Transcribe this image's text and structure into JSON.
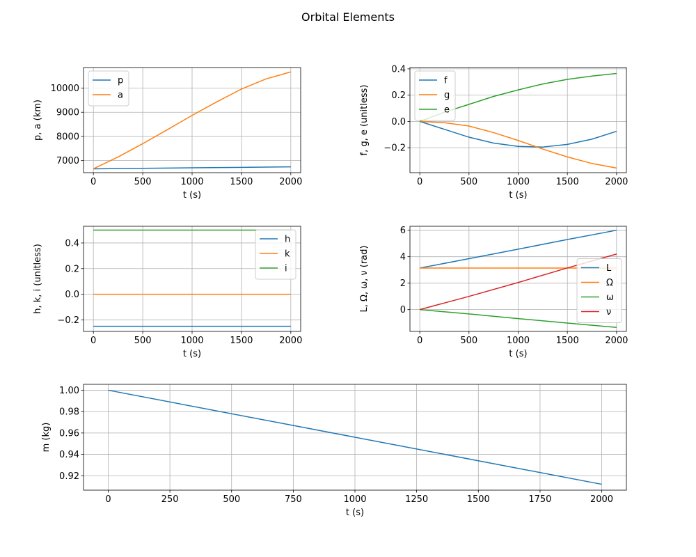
{
  "figure": {
    "title": "Orbital Elements"
  },
  "colors": {
    "blue": "#1f77b4",
    "orange": "#ff7f0e",
    "green": "#2ca02c",
    "red": "#d62728",
    "grid": "#b0b0b0"
  },
  "chart_data": [
    {
      "type": "line",
      "xlabel": "t (s)",
      "ylabel": "p, a (km)",
      "xlim": [
        -100,
        2100
      ],
      "ylim": [
        6500,
        10850
      ],
      "xticks": [
        0,
        500,
        1000,
        1500,
        2000
      ],
      "yticks": [
        7000,
        8000,
        9000,
        10000
      ],
      "grid": true,
      "legend_position": "upper-left",
      "series": [
        {
          "name": "p",
          "color": "#1f77b4",
          "x": [
            0,
            500,
            1000,
            1500,
            2000
          ],
          "y": [
            6660,
            6680,
            6700,
            6720,
            6740
          ]
        },
        {
          "name": "a",
          "color": "#ff7f0e",
          "x": [
            0,
            250,
            500,
            750,
            1000,
            1250,
            1500,
            1750,
            2000
          ],
          "y": [
            6660,
            7150,
            7700,
            8280,
            8870,
            9430,
            9960,
            10380,
            10670
          ]
        }
      ]
    },
    {
      "type": "line",
      "xlabel": "t (s)",
      "ylabel": "f, g, e (unitless)",
      "xlim": [
        -100,
        2100
      ],
      "ylim": [
        -0.39,
        0.41
      ],
      "xticks": [
        0,
        500,
        1000,
        1500,
        2000
      ],
      "yticks": [
        -0.2,
        0.0,
        0.2,
        0.4
      ],
      "ytick_labels": [
        "−0.2",
        "0.0",
        "0.2",
        "0.4"
      ],
      "grid": true,
      "legend_position": "upper-left",
      "series": [
        {
          "name": "f",
          "color": "#1f77b4",
          "x": [
            0,
            250,
            500,
            750,
            1000,
            1250,
            1500,
            1750,
            2000
          ],
          "y": [
            0.0,
            -0.06,
            -0.12,
            -0.165,
            -0.19,
            -0.195,
            -0.175,
            -0.135,
            -0.075
          ]
        },
        {
          "name": "g",
          "color": "#ff7f0e",
          "x": [
            0,
            250,
            500,
            750,
            1000,
            1250,
            1500,
            1750,
            2000
          ],
          "y": [
            0.0,
            -0.01,
            -0.035,
            -0.085,
            -0.145,
            -0.21,
            -0.27,
            -0.32,
            -0.355
          ]
        },
        {
          "name": "e",
          "color": "#2ca02c",
          "x": [
            0,
            250,
            500,
            750,
            1000,
            1250,
            1500,
            1750,
            2000
          ],
          "y": [
            0.0,
            0.07,
            0.13,
            0.19,
            0.24,
            0.285,
            0.32,
            0.345,
            0.365
          ]
        }
      ]
    },
    {
      "type": "line",
      "xlabel": "t (s)",
      "ylabel": "h, k, i (unitless)",
      "xlim": [
        -100,
        2100
      ],
      "ylim": [
        -0.29,
        0.53
      ],
      "xticks": [
        0,
        500,
        1000,
        1500,
        2000
      ],
      "yticks": [
        -0.2,
        0.0,
        0.2,
        0.4
      ],
      "ytick_labels": [
        "−0.2",
        "0.0",
        "0.2",
        "0.4"
      ],
      "grid": true,
      "legend_position": "upper-right",
      "series": [
        {
          "name": "h",
          "color": "#1f77b4",
          "x": [
            0,
            2000
          ],
          "y": [
            -0.25,
            -0.25
          ]
        },
        {
          "name": "k",
          "color": "#ff7f0e",
          "x": [
            0,
            2000
          ],
          "y": [
            0.0,
            0.0
          ]
        },
        {
          "name": "i",
          "color": "#2ca02c",
          "x": [
            0,
            2000
          ],
          "y": [
            0.5,
            0.5
          ]
        }
      ]
    },
    {
      "type": "line",
      "xlabel": "t (s)",
      "ylabel": "L, Ω, ω, ν (rad)",
      "xlim": [
        -100,
        2100
      ],
      "ylim": [
        -1.65,
        6.3
      ],
      "xticks": [
        0,
        500,
        1000,
        1500,
        2000
      ],
      "yticks": [
        0,
        2,
        4,
        6
      ],
      "grid": true,
      "legend_position": "center-right",
      "series": [
        {
          "name": "L",
          "color": "#1f77b4",
          "x": [
            0,
            500,
            1000,
            1500,
            2000
          ],
          "y": [
            3.14,
            3.85,
            4.57,
            5.3,
            6.0
          ]
        },
        {
          "name": "Ω",
          "color": "#ff7f0e",
          "x": [
            0,
            2000
          ],
          "y": [
            3.14,
            3.14
          ]
        },
        {
          "name": "ω",
          "color": "#2ca02c",
          "x": [
            0,
            500,
            1000,
            1500,
            2000
          ],
          "y": [
            0.0,
            -0.33,
            -0.68,
            -1.02,
            -1.35
          ]
        },
        {
          "name": "ν",
          "color": "#d62728",
          "x": [
            0,
            500,
            1000,
            1500,
            2000
          ],
          "y": [
            0.0,
            1.0,
            2.05,
            3.15,
            4.2
          ]
        }
      ]
    },
    {
      "type": "line",
      "xlabel": "t (s)",
      "ylabel": "m (kg)",
      "xlim": [
        -100,
        2100
      ],
      "ylim": [
        0.9065,
        1.0055
      ],
      "xticks": [
        0,
        250,
        500,
        750,
        1000,
        1250,
        1500,
        1750,
        2000
      ],
      "yticks": [
        0.92,
        0.94,
        0.96,
        0.98,
        1.0
      ],
      "ytick_labels": [
        "0.92",
        "0.94",
        "0.96",
        "0.98",
        "1.00"
      ],
      "grid": true,
      "legend_position": "none",
      "series": [
        {
          "color": "#1f77b4",
          "x": [
            0,
            2000
          ],
          "y": [
            1.0,
            0.912
          ]
        }
      ]
    }
  ]
}
